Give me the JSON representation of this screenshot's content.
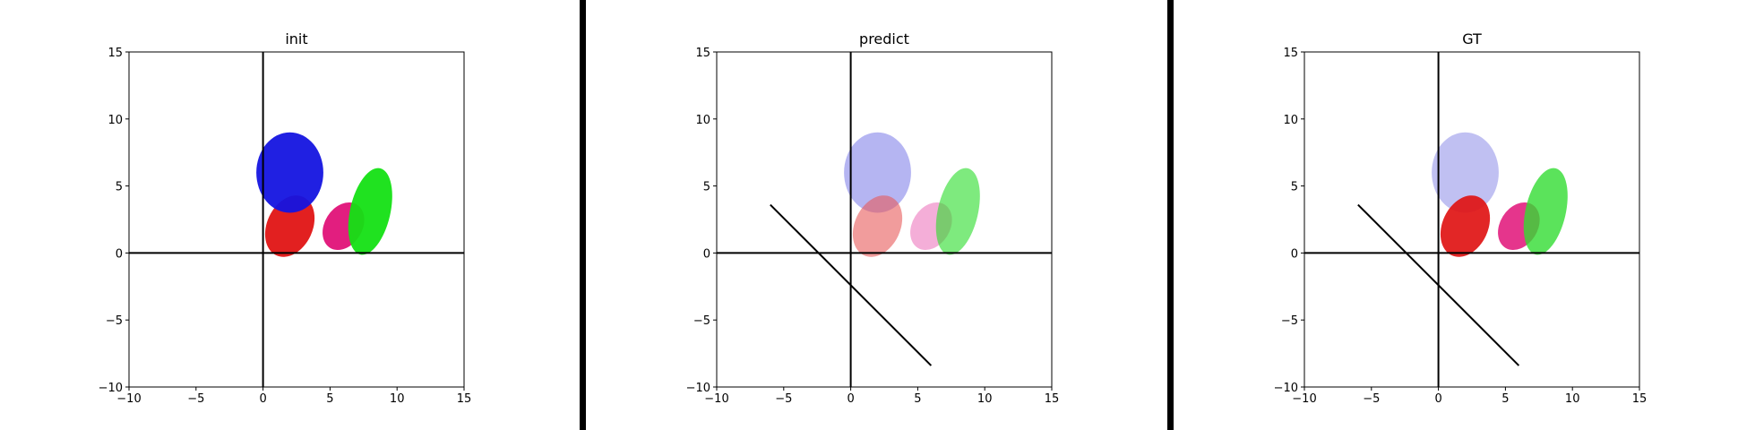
{
  "chart_data": [
    {
      "type": "scatter",
      "title": "init",
      "xlim": [
        -10,
        15
      ],
      "ylim": [
        -10,
        15
      ],
      "xticks": [
        -10,
        -5,
        0,
        5,
        10,
        15
      ],
      "yticks": [
        -10,
        -5,
        0,
        5,
        10,
        15
      ],
      "tick_labels": [
        "−10",
        "−5",
        "0",
        "5",
        "10",
        "15"
      ],
      "axes_lines": true,
      "grid": false,
      "ellipses": [
        {
          "cx": 2.0,
          "cy": 2.0,
          "rx": 1.7,
          "ry": 2.4,
          "angle": 25,
          "color": "#e01414",
          "opacity": 0.95
        },
        {
          "cx": 6.0,
          "cy": 2.0,
          "rx": 1.4,
          "ry": 1.9,
          "angle": 32,
          "color": "#e01278",
          "opacity": 0.95
        },
        {
          "cx": 8.0,
          "cy": 3.1,
          "rx": 1.5,
          "ry": 3.3,
          "angle": 13,
          "color": "#14e014",
          "opacity": 0.95
        },
        {
          "cx": 2.0,
          "cy": 6.0,
          "rx": 2.5,
          "ry": 3.0,
          "angle": 0,
          "color": "#1414e0",
          "opacity": 0.95
        }
      ]
    },
    {
      "type": "scatter",
      "title": "predict",
      "xlim": [
        -10,
        15
      ],
      "ylim": [
        -10,
        15
      ],
      "xticks": [
        -10,
        -5,
        0,
        5,
        10,
        15
      ],
      "yticks": [
        -10,
        -5,
        0,
        5,
        10,
        15
      ],
      "tick_labels": [
        "−10",
        "−5",
        "0",
        "5",
        "10",
        "15"
      ],
      "axes_lines": true,
      "grid": false,
      "ellipses": [
        {
          "cx": 2.0,
          "cy": 6.0,
          "rx": 2.5,
          "ry": 3.0,
          "angle": 0,
          "color": "#7878e8",
          "opacity": 0.55
        },
        {
          "cx": 2.0,
          "cy": 2.0,
          "rx": 1.7,
          "ry": 2.4,
          "angle": 25,
          "color": "#e85a5a",
          "opacity": 0.6
        },
        {
          "cx": 6.0,
          "cy": 2.0,
          "rx": 1.4,
          "ry": 1.9,
          "angle": 32,
          "color": "#f08cc8",
          "opacity": 0.7
        },
        {
          "cx": 8.0,
          "cy": 3.1,
          "rx": 1.5,
          "ry": 3.3,
          "angle": 13,
          "color": "#28dc28",
          "opacity": 0.6
        }
      ],
      "line": {
        "x": [
          -6.0,
          6.0
        ],
        "y": [
          3.6,
          -8.4
        ]
      }
    },
    {
      "type": "scatter",
      "title": "GT",
      "xlim": [
        -10,
        15
      ],
      "ylim": [
        -10,
        15
      ],
      "xticks": [
        -10,
        -5,
        0,
        5,
        10,
        15
      ],
      "yticks": [
        -10,
        -5,
        0,
        5,
        10,
        15
      ],
      "tick_labels": [
        "−10",
        "−5",
        "0",
        "5",
        "10",
        "15"
      ],
      "axes_lines": true,
      "grid": false,
      "ellipses": [
        {
          "cx": 2.0,
          "cy": 6.0,
          "rx": 2.5,
          "ry": 3.0,
          "angle": 0,
          "color": "#8c8ce8",
          "opacity": 0.55
        },
        {
          "cx": 2.0,
          "cy": 2.0,
          "rx": 1.7,
          "ry": 2.4,
          "angle": 25,
          "color": "#e01414",
          "opacity": 0.92
        },
        {
          "cx": 6.0,
          "cy": 2.0,
          "rx": 1.4,
          "ry": 1.9,
          "angle": 32,
          "color": "#e01278",
          "opacity": 0.85
        },
        {
          "cx": 8.0,
          "cy": 3.1,
          "rx": 1.5,
          "ry": 3.3,
          "angle": 13,
          "color": "#32dc32",
          "opacity": 0.8
        }
      ],
      "line": {
        "x": [
          -6.0,
          6.0
        ],
        "y": [
          3.6,
          -8.4
        ]
      }
    }
  ]
}
